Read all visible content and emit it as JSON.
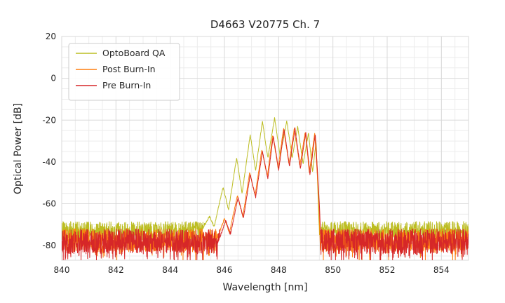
{
  "chart_data": {
    "type": "line",
    "title": "D4663 V20775 Ch. 7",
    "xlabel": "Wavelength [nm]",
    "ylabel": "Optical Power [dB]",
    "xlim": [
      840,
      855
    ],
    "ylim": [
      -87,
      20
    ],
    "xticks": [
      840,
      842,
      844,
      846,
      848,
      850,
      852,
      854
    ],
    "yticks": [
      20,
      0,
      -20,
      -40,
      -60,
      -80
    ],
    "x_minor_step": 0.5,
    "y_minor_step": 5,
    "grid": true,
    "sample_step_nm": 0.008,
    "legend": {
      "position": "upper-left",
      "entries": [
        "OptoBoard QA",
        "Post Burn-In",
        "Pre Burn-In"
      ]
    },
    "series": [
      {
        "name": "OptoBoard QA",
        "color": "#bcbd22",
        "noise_floor_db": -73,
        "noise_amplitude_db": 4.5,
        "spike_probability": 0.06,
        "spike_depth_db": 5,
        "signal_breakpoints": [
          [
            845.15,
            -73
          ],
          [
            845.45,
            -66
          ],
          [
            845.62,
            -71
          ],
          [
            845.95,
            -52
          ],
          [
            846.15,
            -63
          ],
          [
            846.45,
            -38
          ],
          [
            846.65,
            -55
          ],
          [
            846.95,
            -27
          ],
          [
            847.15,
            -44
          ],
          [
            847.4,
            -20.5
          ],
          [
            847.6,
            -38
          ],
          [
            847.85,
            -19
          ],
          [
            848.05,
            -37
          ],
          [
            848.3,
            -20.5
          ],
          [
            848.5,
            -38
          ],
          [
            848.7,
            -23
          ],
          [
            848.9,
            -41
          ],
          [
            849.1,
            -26
          ],
          [
            849.25,
            -45
          ],
          [
            849.38,
            -30
          ],
          [
            849.5,
            -74
          ]
        ]
      },
      {
        "name": "Post Burn-In",
        "color": "#ff7f0e",
        "noise_floor_db": -77.5,
        "noise_amplitude_db": 5.5,
        "spike_probability": 0.15,
        "spike_depth_db": 7,
        "signal_breakpoints": [
          [
            845.7,
            -78
          ],
          [
            846.0,
            -67
          ],
          [
            846.18,
            -74
          ],
          [
            846.48,
            -56
          ],
          [
            846.68,
            -66
          ],
          [
            846.93,
            -45
          ],
          [
            847.13,
            -56
          ],
          [
            847.38,
            -34
          ],
          [
            847.58,
            -47
          ],
          [
            847.78,
            -27
          ],
          [
            847.98,
            -43
          ],
          [
            848.18,
            -24
          ],
          [
            848.38,
            -41
          ],
          [
            848.58,
            -23.5
          ],
          [
            848.78,
            -42
          ],
          [
            848.98,
            -25.5
          ],
          [
            849.13,
            -45
          ],
          [
            849.33,
            -26
          ],
          [
            849.48,
            -58
          ],
          [
            849.53,
            -79
          ]
        ]
      },
      {
        "name": "Pre Burn-In",
        "color": "#d62728",
        "noise_floor_db": -78,
        "noise_amplitude_db": 6,
        "spike_probability": 0.18,
        "spike_depth_db": 8,
        "signal_breakpoints": [
          [
            845.75,
            -79
          ],
          [
            846.05,
            -68
          ],
          [
            846.22,
            -75
          ],
          [
            846.5,
            -57
          ],
          [
            846.7,
            -67
          ],
          [
            846.95,
            -46
          ],
          [
            847.15,
            -57
          ],
          [
            847.4,
            -35
          ],
          [
            847.6,
            -48
          ],
          [
            847.8,
            -27.5
          ],
          [
            848.0,
            -44
          ],
          [
            848.2,
            -24.5
          ],
          [
            848.4,
            -42
          ],
          [
            848.6,
            -24
          ],
          [
            848.8,
            -43
          ],
          [
            849.0,
            -26
          ],
          [
            849.15,
            -46
          ],
          [
            849.35,
            -26.5
          ],
          [
            849.5,
            -60
          ],
          [
            849.56,
            -80
          ]
        ]
      }
    ]
  }
}
